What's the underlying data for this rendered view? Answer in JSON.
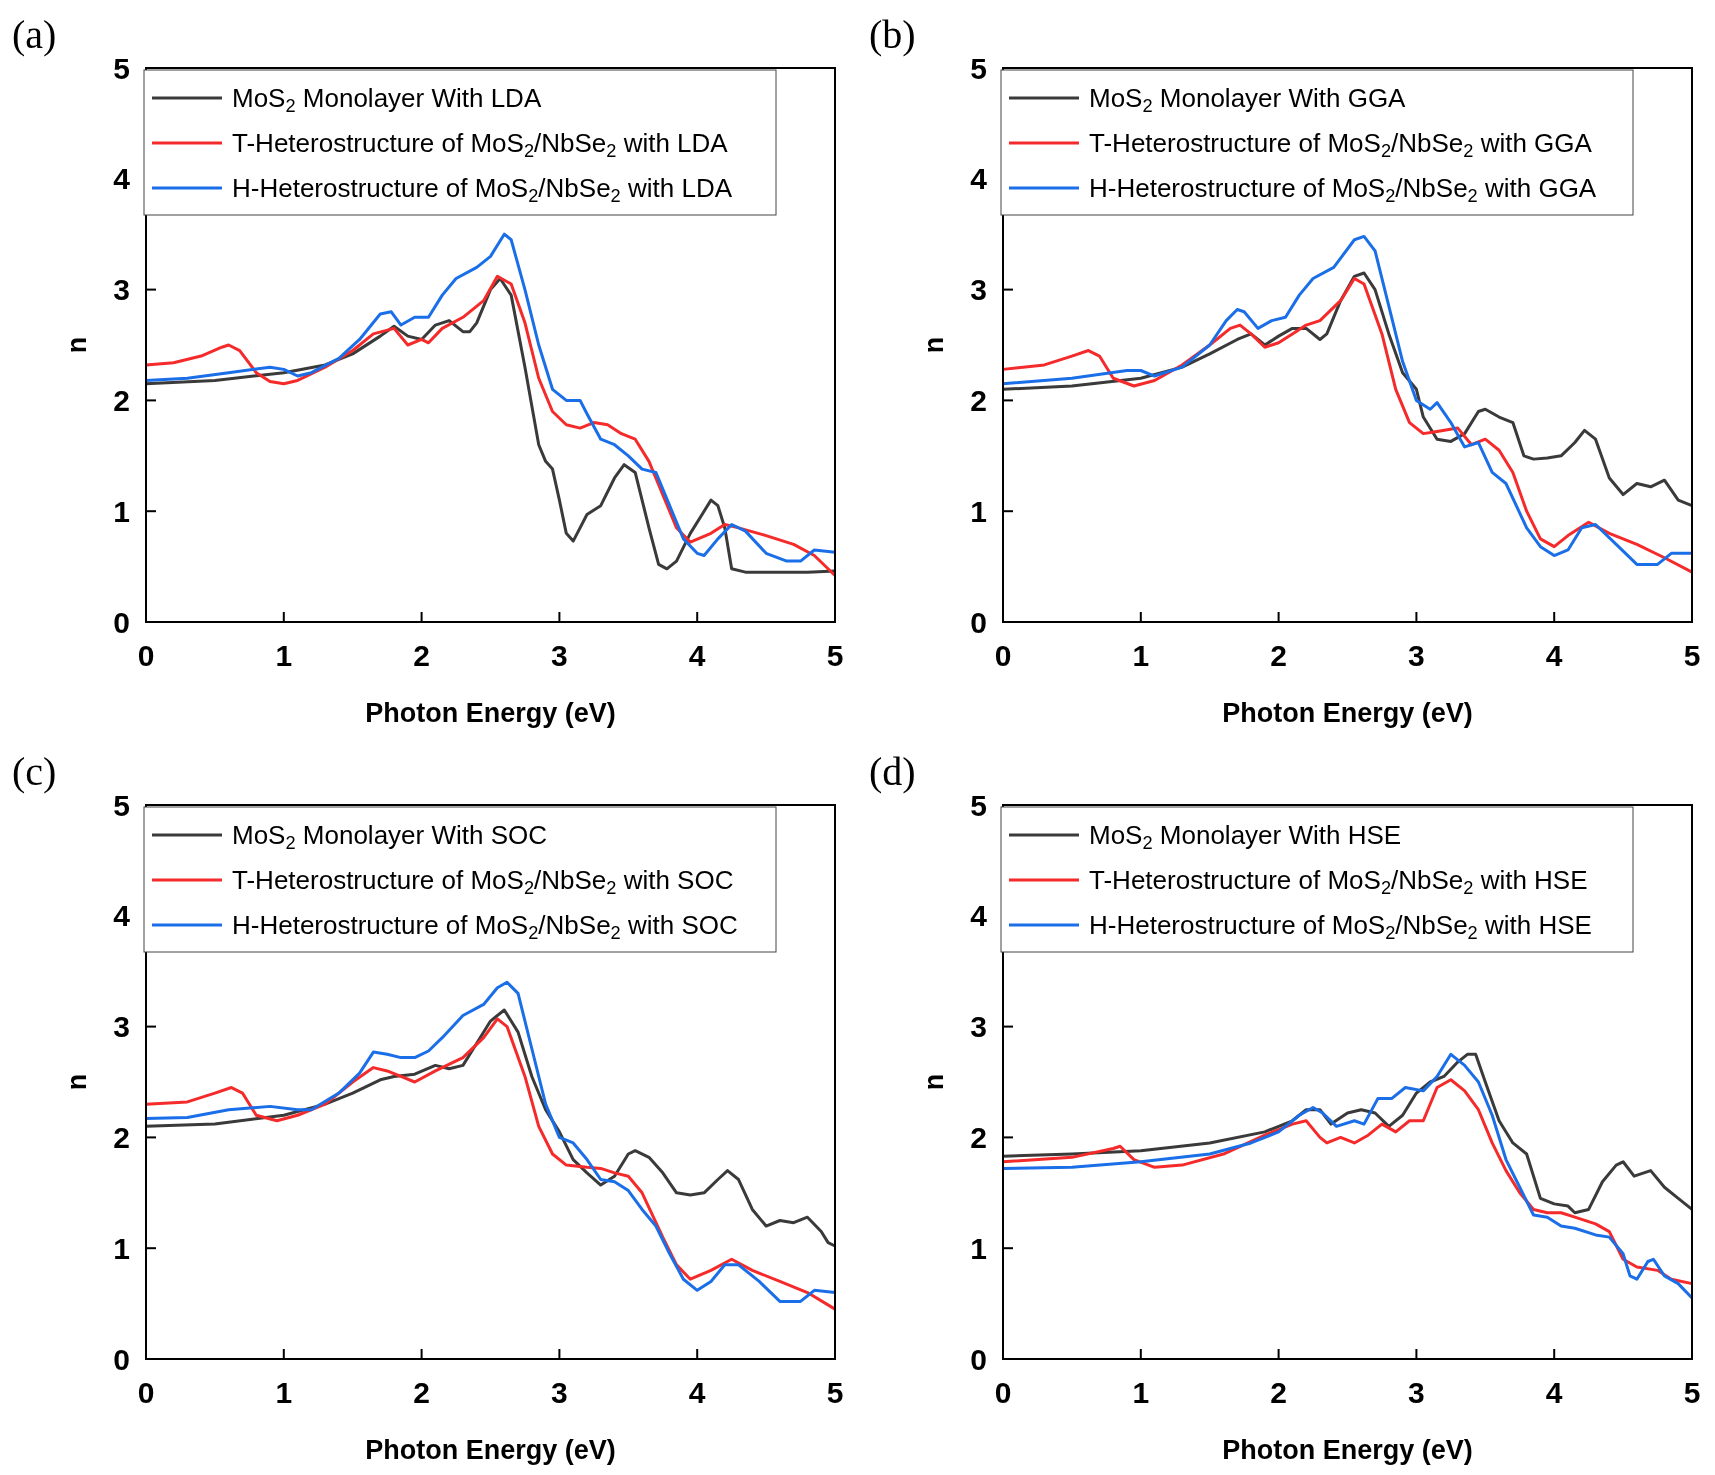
{
  "chart_data": [
    {
      "type": "line",
      "title": "(a)",
      "xlabel": "Photon Energy (eV)",
      "ylabel": "n",
      "xlim": [
        0,
        5
      ],
      "ylim": [
        0,
        5
      ],
      "xticks": [
        0,
        1,
        2,
        3,
        4,
        5
      ],
      "yticks": [
        0,
        1,
        2,
        3,
        4,
        5
      ],
      "legend": "top",
      "series": [
        {
          "name": "MoS$_{2}$ Monolayer With LDA",
          "color": "#3a3a3a",
          "x": [
            0,
            0.5,
            1,
            1.3,
            1.5,
            1.7,
            1.8,
            1.9,
            2.0,
            2.1,
            2.2,
            2.3,
            2.35,
            2.4,
            2.5,
            2.57,
            2.65,
            2.75,
            2.85,
            2.9,
            2.95,
            3.0,
            3.05,
            3.1,
            3.15,
            3.2,
            3.3,
            3.4,
            3.47,
            3.55,
            3.65,
            3.72,
            3.78,
            3.85,
            3.95,
            4.05,
            4.1,
            4.15,
            4.2,
            4.25,
            4.35,
            4.6,
            4.8,
            5
          ],
          "values": [
            2.15,
            2.18,
            2.25,
            2.32,
            2.42,
            2.58,
            2.67,
            2.58,
            2.55,
            2.68,
            2.72,
            2.62,
            2.62,
            2.7,
            3.0,
            3.1,
            2.95,
            2.3,
            1.6,
            1.45,
            1.38,
            1.1,
            0.8,
            0.73,
            0.85,
            0.97,
            1.05,
            1.3,
            1.42,
            1.35,
            0.85,
            0.52,
            0.48,
            0.55,
            0.8,
            1.0,
            1.1,
            1.05,
            0.85,
            0.48,
            0.45,
            0.45,
            0.45,
            0.46
          ]
        },
        {
          "name": "T-Heterostructure of MoS$_{2}$/NbSe$_{2}$ with LDA",
          "color": "#f52a2a",
          "x": [
            0,
            0.2,
            0.4,
            0.55,
            0.6,
            0.68,
            0.8,
            0.9,
            1.0,
            1.1,
            1.3,
            1.5,
            1.65,
            1.8,
            1.9,
            2.0,
            2.05,
            2.15,
            2.3,
            2.45,
            2.55,
            2.65,
            2.75,
            2.85,
            2.95,
            3.05,
            3.15,
            3.25,
            3.35,
            3.45,
            3.55,
            3.65,
            3.75,
            3.85,
            3.95,
            4.1,
            4.2,
            4.3,
            4.5,
            4.7,
            4.85,
            5
          ],
          "values": [
            2.32,
            2.34,
            2.4,
            2.48,
            2.5,
            2.45,
            2.25,
            2.17,
            2.15,
            2.18,
            2.3,
            2.45,
            2.6,
            2.65,
            2.5,
            2.55,
            2.52,
            2.65,
            2.75,
            2.9,
            3.12,
            3.05,
            2.7,
            2.2,
            1.9,
            1.78,
            1.75,
            1.8,
            1.78,
            1.7,
            1.65,
            1.45,
            1.15,
            0.85,
            0.72,
            0.8,
            0.88,
            0.85,
            0.78,
            0.7,
            0.6,
            0.42
          ]
        },
        {
          "name": "H-Heterostructure of MoS$_{2}$/NbSe$_{2}$ with LDA",
          "color": "#1a6fe8",
          "x": [
            0,
            0.3,
            0.6,
            0.9,
            1.0,
            1.1,
            1.2,
            1.4,
            1.55,
            1.7,
            1.78,
            1.85,
            1.95,
            2.05,
            2.15,
            2.25,
            2.4,
            2.5,
            2.6,
            2.65,
            2.75,
            2.85,
            2.95,
            3.05,
            3.15,
            3.2,
            3.3,
            3.4,
            3.5,
            3.6,
            3.7,
            3.8,
            3.9,
            4.0,
            4.05,
            4.15,
            4.25,
            4.35,
            4.5,
            4.65,
            4.75,
            4.85,
            5
          ],
          "values": [
            2.18,
            2.2,
            2.25,
            2.3,
            2.28,
            2.22,
            2.25,
            2.38,
            2.55,
            2.78,
            2.8,
            2.68,
            2.75,
            2.75,
            2.95,
            3.1,
            3.2,
            3.3,
            3.5,
            3.45,
            3.0,
            2.5,
            2.1,
            2.0,
            2.0,
            1.88,
            1.65,
            1.6,
            1.5,
            1.38,
            1.35,
            1.05,
            0.75,
            0.62,
            0.6,
            0.75,
            0.88,
            0.82,
            0.62,
            0.55,
            0.55,
            0.65,
            0.63
          ]
        }
      ]
    },
    {
      "type": "line",
      "title": "(b)",
      "xlabel": "Photon Energy (eV)",
      "ylabel": "n",
      "xlim": [
        0,
        5
      ],
      "ylim": [
        0,
        5
      ],
      "xticks": [
        0,
        1,
        2,
        3,
        4,
        5
      ],
      "yticks": [
        0,
        1,
        2,
        3,
        4,
        5
      ],
      "legend": "top",
      "series": [
        {
          "name": "MoS$_{2}$ Monolayer With GGA",
          "color": "#3a3a3a",
          "x": [
            0,
            0.5,
            1,
            1.3,
            1.5,
            1.7,
            1.8,
            1.9,
            2.0,
            2.1,
            2.2,
            2.3,
            2.35,
            2.45,
            2.55,
            2.62,
            2.7,
            2.8,
            2.9,
            3.0,
            3.05,
            3.15,
            3.25,
            3.35,
            3.45,
            3.5,
            3.6,
            3.7,
            3.78,
            3.85,
            3.95,
            4.05,
            4.15,
            4.22,
            4.3,
            4.4,
            4.5,
            4.6,
            4.7,
            4.8,
            4.9,
            5
          ],
          "values": [
            2.1,
            2.13,
            2.2,
            2.3,
            2.42,
            2.55,
            2.6,
            2.5,
            2.58,
            2.65,
            2.65,
            2.55,
            2.6,
            2.9,
            3.12,
            3.15,
            3.0,
            2.6,
            2.25,
            2.1,
            1.85,
            1.65,
            1.63,
            1.7,
            1.9,
            1.92,
            1.85,
            1.8,
            1.5,
            1.47,
            1.48,
            1.5,
            1.62,
            1.73,
            1.65,
            1.3,
            1.15,
            1.25,
            1.22,
            1.28,
            1.1,
            1.05
          ]
        },
        {
          "name": "T-Heterostructure of MoS$_{2}$/NbSe$_{2}$ with GGA",
          "color": "#f52a2a",
          "x": [
            0,
            0.3,
            0.5,
            0.62,
            0.7,
            0.8,
            0.95,
            1.1,
            1.3,
            1.5,
            1.65,
            1.72,
            1.8,
            1.9,
            2.0,
            2.1,
            2.2,
            2.3,
            2.45,
            2.55,
            2.62,
            2.75,
            2.85,
            2.95,
            3.05,
            3.15,
            3.3,
            3.4,
            3.5,
            3.6,
            3.7,
            3.8,
            3.9,
            4.0,
            4.1,
            4.25,
            4.4,
            4.6,
            4.8,
            5
          ],
          "values": [
            2.28,
            2.32,
            2.4,
            2.45,
            2.4,
            2.2,
            2.13,
            2.18,
            2.32,
            2.5,
            2.65,
            2.68,
            2.6,
            2.48,
            2.52,
            2.6,
            2.68,
            2.72,
            2.9,
            3.1,
            3.05,
            2.6,
            2.1,
            1.8,
            1.7,
            1.72,
            1.75,
            1.6,
            1.65,
            1.55,
            1.35,
            1.0,
            0.75,
            0.68,
            0.78,
            0.9,
            0.8,
            0.7,
            0.58,
            0.45
          ]
        },
        {
          "name": "H-Heterostructure of MoS$_{2}$/NbSe$_{2}$ with GGA",
          "color": "#1a6fe8",
          "x": [
            0,
            0.5,
            0.9,
            1.0,
            1.1,
            1.3,
            1.5,
            1.62,
            1.7,
            1.75,
            1.85,
            1.95,
            2.05,
            2.15,
            2.25,
            2.4,
            2.55,
            2.62,
            2.7,
            2.8,
            2.9,
            3.0,
            3.1,
            3.15,
            3.25,
            3.35,
            3.45,
            3.55,
            3.65,
            3.8,
            3.9,
            4.0,
            4.1,
            4.2,
            4.3,
            4.45,
            4.6,
            4.75,
            4.85,
            5
          ],
          "values": [
            2.15,
            2.2,
            2.27,
            2.27,
            2.22,
            2.3,
            2.5,
            2.72,
            2.82,
            2.8,
            2.65,
            2.72,
            2.75,
            2.95,
            3.1,
            3.2,
            3.45,
            3.48,
            3.35,
            2.85,
            2.35,
            2.0,
            1.92,
            1.98,
            1.8,
            1.58,
            1.62,
            1.35,
            1.25,
            0.85,
            0.68,
            0.6,
            0.65,
            0.85,
            0.88,
            0.7,
            0.52,
            0.52,
            0.62,
            0.62
          ]
        }
      ]
    },
    {
      "type": "line",
      "title": "(c)",
      "xlabel": "Photon Energy (eV)",
      "ylabel": "n",
      "xlim": [
        0,
        5
      ],
      "ylim": [
        0,
        5
      ],
      "xticks": [
        0,
        1,
        2,
        3,
        4,
        5
      ],
      "yticks": [
        0,
        1,
        2,
        3,
        4,
        5
      ],
      "legend": "top",
      "series": [
        {
          "name": "MoS$_{2}$ Monolayer With SOC",
          "color": "#3a3a3a",
          "x": [
            0,
            0.5,
            1,
            1.3,
            1.5,
            1.7,
            1.8,
            1.95,
            2.1,
            2.2,
            2.3,
            2.4,
            2.5,
            2.6,
            2.7,
            2.8,
            2.9,
            3.0,
            3.1,
            3.2,
            3.3,
            3.4,
            3.5,
            3.55,
            3.65,
            3.75,
            3.85,
            3.95,
            4.05,
            4.15,
            4.22,
            4.3,
            4.4,
            4.5,
            4.6,
            4.7,
            4.8,
            4.9,
            4.95,
            5
          ],
          "values": [
            2.1,
            2.12,
            2.2,
            2.3,
            2.4,
            2.52,
            2.55,
            2.57,
            2.65,
            2.62,
            2.65,
            2.85,
            3.05,
            3.15,
            2.95,
            2.55,
            2.25,
            2.05,
            1.8,
            1.68,
            1.57,
            1.65,
            1.85,
            1.88,
            1.82,
            1.68,
            1.5,
            1.48,
            1.5,
            1.62,
            1.7,
            1.62,
            1.35,
            1.2,
            1.25,
            1.23,
            1.28,
            1.15,
            1.05,
            1.02
          ]
        },
        {
          "name": "T-Heterostructure of MoS$_{2}$/NbSe$_{2}$ with SOC",
          "color": "#f52a2a",
          "x": [
            0,
            0.3,
            0.5,
            0.62,
            0.7,
            0.8,
            0.95,
            1.1,
            1.3,
            1.5,
            1.65,
            1.75,
            1.85,
            1.95,
            2.1,
            2.3,
            2.45,
            2.55,
            2.62,
            2.75,
            2.85,
            2.95,
            3.05,
            3.2,
            3.3,
            3.4,
            3.5,
            3.6,
            3.75,
            3.85,
            3.95,
            4.1,
            4.25,
            4.4,
            4.6,
            4.8,
            5
          ],
          "values": [
            2.3,
            2.32,
            2.4,
            2.45,
            2.4,
            2.2,
            2.15,
            2.2,
            2.3,
            2.5,
            2.63,
            2.6,
            2.55,
            2.5,
            2.6,
            2.72,
            2.9,
            3.07,
            3.0,
            2.55,
            2.1,
            1.85,
            1.75,
            1.73,
            1.72,
            1.68,
            1.65,
            1.5,
            1.1,
            0.85,
            0.72,
            0.8,
            0.9,
            0.8,
            0.7,
            0.6,
            0.45
          ]
        },
        {
          "name": "H-Heterostructure of MoS$_{2}$/NbSe$_{2}$ with SOC",
          "color": "#1a6fe8",
          "x": [
            0,
            0.3,
            0.6,
            0.9,
            1.1,
            1.2,
            1.4,
            1.55,
            1.65,
            1.75,
            1.85,
            1.95,
            2.05,
            2.15,
            2.3,
            2.45,
            2.55,
            2.62,
            2.7,
            2.8,
            2.9,
            3.0,
            3.1,
            3.2,
            3.3,
            3.4,
            3.5,
            3.6,
            3.7,
            3.8,
            3.9,
            4.0,
            4.1,
            4.2,
            4.3,
            4.45,
            4.6,
            4.75,
            4.85,
            5
          ],
          "values": [
            2.17,
            2.18,
            2.25,
            2.28,
            2.25,
            2.25,
            2.4,
            2.58,
            2.77,
            2.75,
            2.72,
            2.72,
            2.78,
            2.9,
            3.1,
            3.2,
            3.35,
            3.4,
            3.3,
            2.8,
            2.3,
            2.0,
            1.95,
            1.8,
            1.62,
            1.6,
            1.52,
            1.35,
            1.2,
            0.95,
            0.72,
            0.62,
            0.7,
            0.85,
            0.85,
            0.7,
            0.52,
            0.52,
            0.62,
            0.6
          ]
        }
      ]
    },
    {
      "type": "line",
      "title": "(d)",
      "xlabel": "Photon Energy (eV)",
      "ylabel": "n",
      "xlim": [
        0,
        5
      ],
      "ylim": [
        0,
        5
      ],
      "xticks": [
        0,
        1,
        2,
        3,
        4,
        5
      ],
      "yticks": [
        0,
        1,
        2,
        3,
        4,
        5
      ],
      "legend": "top",
      "series": [
        {
          "name": "MoS$_{2}$ Monolayer With HSE",
          "color": "#3a3a3a",
          "x": [
            0,
            0.5,
            1,
            1.5,
            1.9,
            2.1,
            2.2,
            2.3,
            2.38,
            2.5,
            2.6,
            2.7,
            2.8,
            2.9,
            3.0,
            3.1,
            3.2,
            3.3,
            3.37,
            3.43,
            3.5,
            3.6,
            3.7,
            3.8,
            3.9,
            4.0,
            4.1,
            4.15,
            4.25,
            4.35,
            4.45,
            4.5,
            4.58,
            4.7,
            4.8,
            4.9,
            5
          ],
          "values": [
            1.83,
            1.85,
            1.88,
            1.95,
            2.05,
            2.15,
            2.25,
            2.25,
            2.12,
            2.22,
            2.25,
            2.22,
            2.1,
            2.2,
            2.4,
            2.5,
            2.55,
            2.68,
            2.75,
            2.75,
            2.5,
            2.15,
            1.95,
            1.85,
            1.45,
            1.4,
            1.38,
            1.32,
            1.35,
            1.6,
            1.75,
            1.78,
            1.65,
            1.7,
            1.55,
            1.45,
            1.35
          ]
        },
        {
          "name": "T-Heterostructure of MoS$_{2}$/NbSe$_{2}$ with HSE",
          "color": "#f52a2a",
          "x": [
            0,
            0.5,
            0.8,
            0.85,
            0.95,
            1.1,
            1.3,
            1.6,
            1.9,
            2.1,
            2.2,
            2.3,
            2.35,
            2.45,
            2.55,
            2.65,
            2.75,
            2.85,
            2.95,
            3.05,
            3.15,
            3.25,
            3.35,
            3.45,
            3.55,
            3.65,
            3.75,
            3.85,
            3.95,
            4.05,
            4.15,
            4.3,
            4.4,
            4.5,
            4.6,
            4.75,
            4.85,
            5
          ],
          "values": [
            1.78,
            1.82,
            1.9,
            1.92,
            1.8,
            1.73,
            1.75,
            1.85,
            2.02,
            2.12,
            2.15,
            2.0,
            1.95,
            2.0,
            1.95,
            2.02,
            2.12,
            2.05,
            2.15,
            2.15,
            2.45,
            2.52,
            2.42,
            2.25,
            1.95,
            1.7,
            1.5,
            1.35,
            1.32,
            1.32,
            1.28,
            1.22,
            1.15,
            0.9,
            0.83,
            0.8,
            0.72,
            0.68
          ]
        },
        {
          "name": "H-Heterostructure of MoS$_{2}$/NbSe$_{2}$ with HSE",
          "color": "#1a6fe8",
          "x": [
            0,
            0.5,
            1,
            1.5,
            1.8,
            2.0,
            2.15,
            2.25,
            2.32,
            2.42,
            2.55,
            2.62,
            2.72,
            2.82,
            2.92,
            3.05,
            3.15,
            3.25,
            3.35,
            3.45,
            3.55,
            3.65,
            3.75,
            3.85,
            3.95,
            4.05,
            4.15,
            4.3,
            4.4,
            4.5,
            4.55,
            4.6,
            4.68,
            4.72,
            4.8,
            4.9,
            5
          ],
          "values": [
            1.72,
            1.73,
            1.78,
            1.85,
            1.95,
            2.05,
            2.2,
            2.27,
            2.22,
            2.1,
            2.15,
            2.12,
            2.35,
            2.35,
            2.45,
            2.42,
            2.55,
            2.75,
            2.65,
            2.5,
            2.2,
            1.8,
            1.55,
            1.3,
            1.28,
            1.2,
            1.18,
            1.12,
            1.1,
            0.95,
            0.75,
            0.72,
            0.88,
            0.9,
            0.75,
            0.68,
            0.55
          ]
        }
      ]
    }
  ]
}
